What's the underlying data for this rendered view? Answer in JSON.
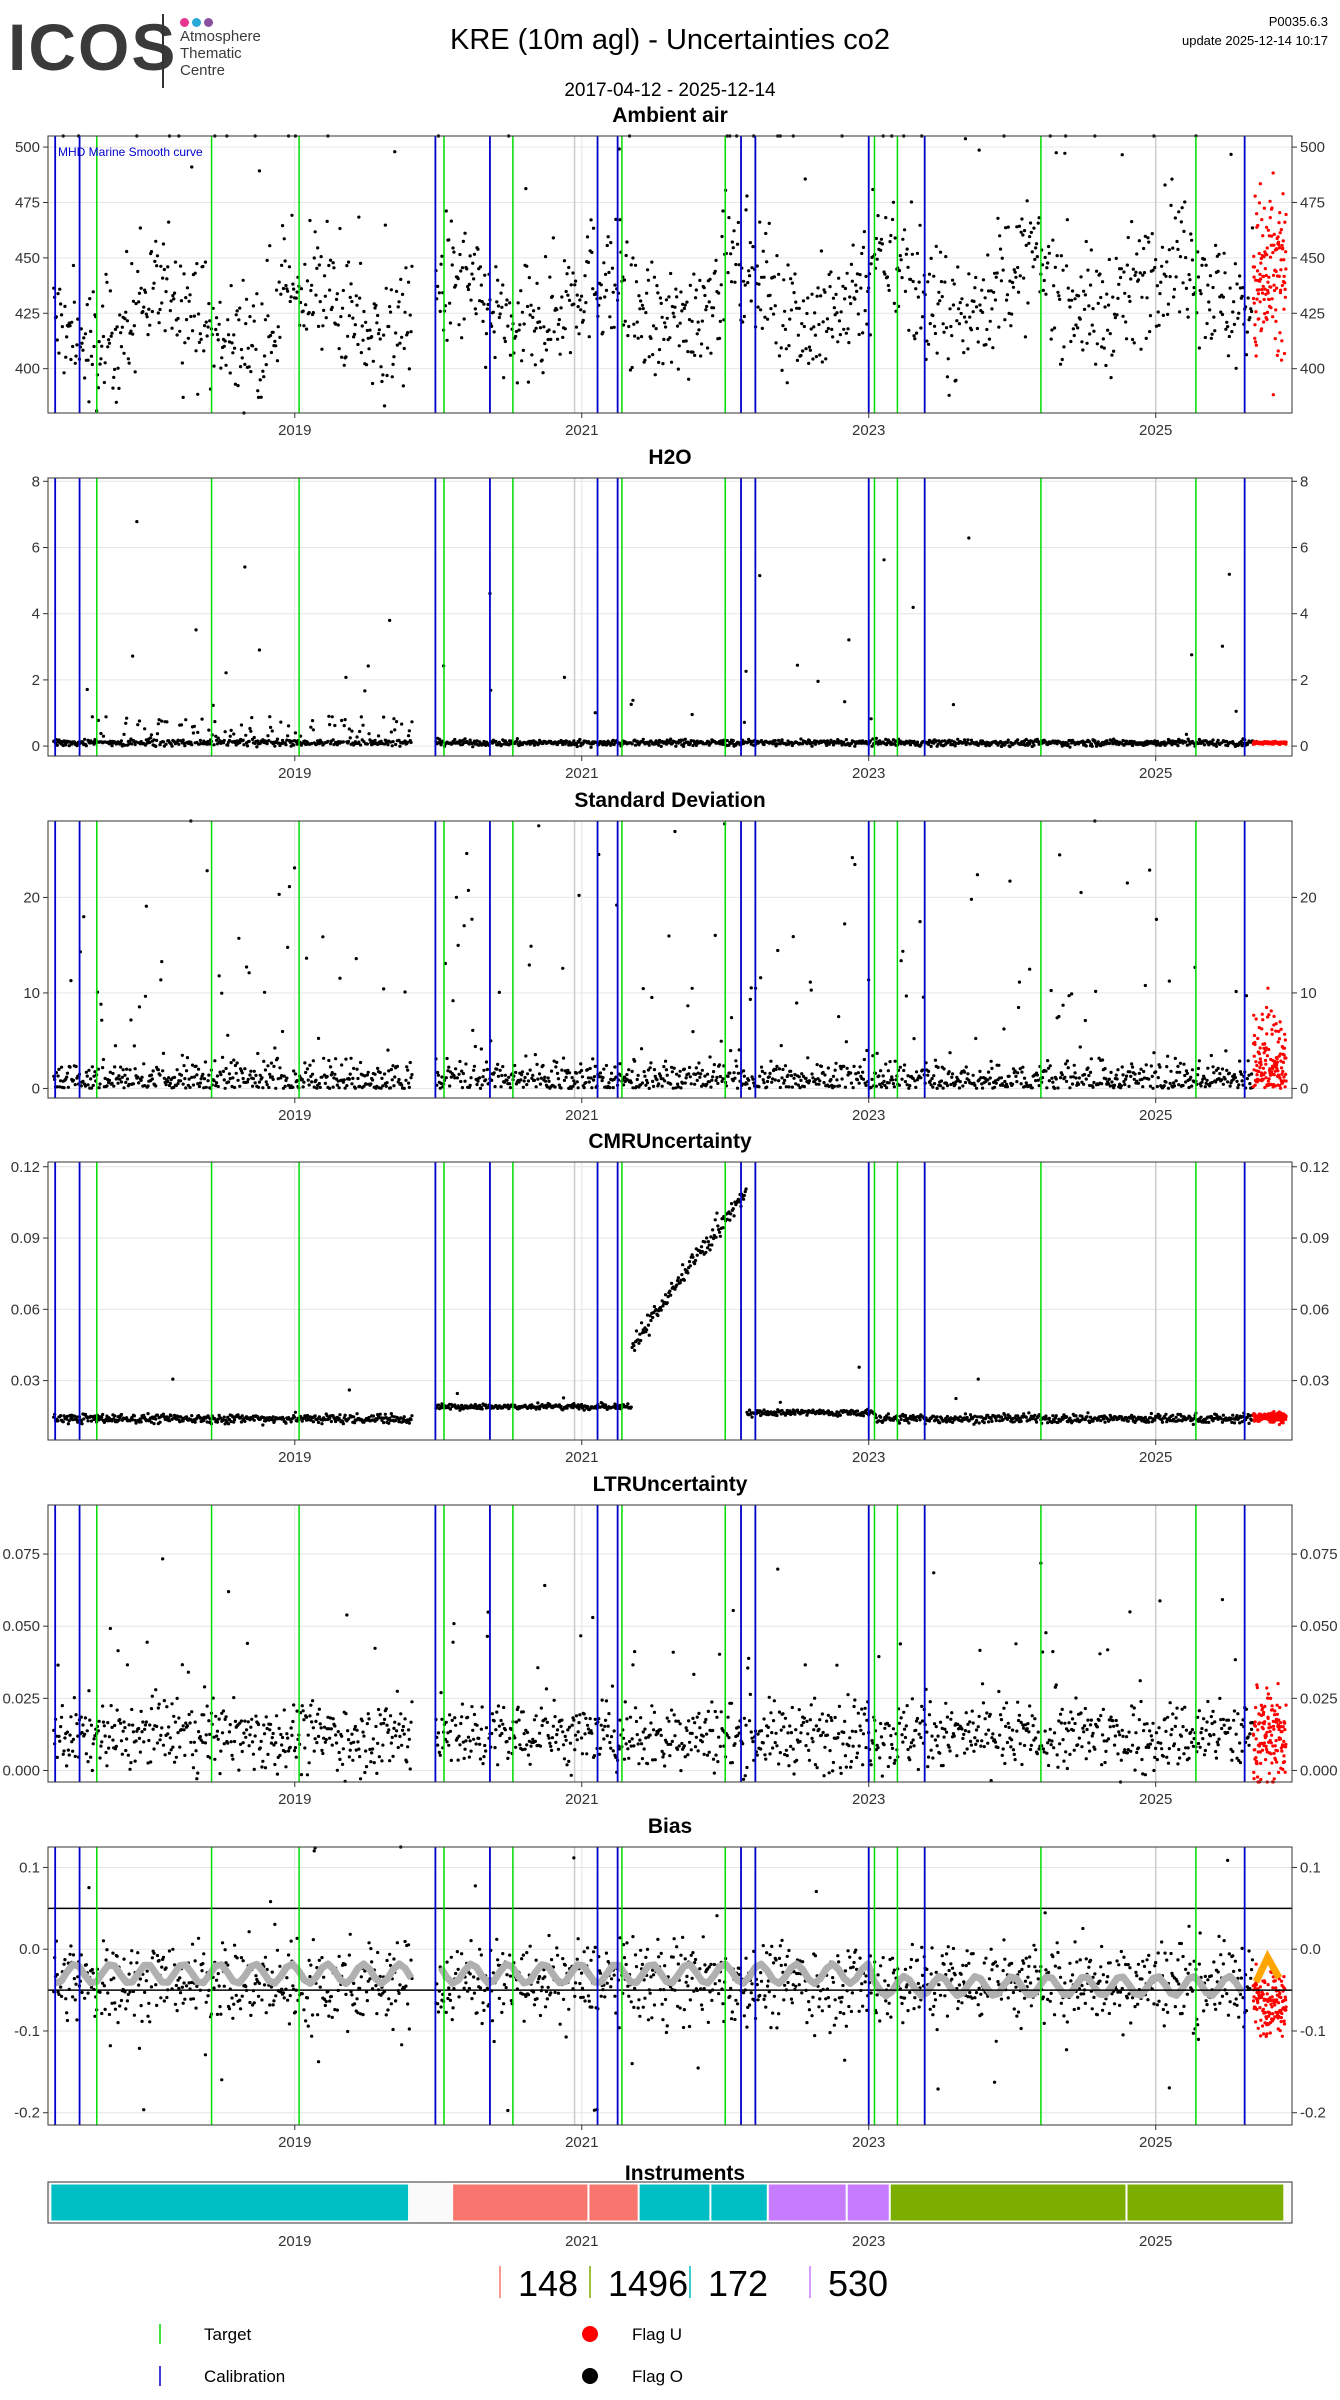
{
  "header": {
    "logo_word": "ICOS",
    "logo_text": [
      "Atmosphere",
      "Thematic",
      "Centre"
    ],
    "logo_dots": [
      "#e8368f",
      "#29a9d5",
      "#8b4fa0"
    ],
    "title": "KRE  (10m agl) - Uncertainties co2",
    "date_range": "2017-04-12 - 2025-12-14",
    "version": "P0035.6.3",
    "update": "update  2025-12-14 10:17"
  },
  "colors": {
    "flag_o": "#000000",
    "flag_u": "#ff0000",
    "target": "#00dd00",
    "calibration": "#0000cc",
    "smooth": "#b0b0b0",
    "smooth_u": "#ffa500",
    "grid": "#e6e6e6",
    "grey_line": "#cccccc"
  },
  "chart_data": {
    "type": "scatter",
    "x_range": [
      2017.28,
      2025.95
    ],
    "x_ticks": [
      "2019",
      "2021",
      "2023",
      "2025"
    ],
    "x_tick_values": [
      2019,
      2021,
      2023,
      2025
    ],
    "calibration_lines": [
      2017.33,
      2017.5,
      2019.98,
      2020.36,
      2021.11,
      2021.25,
      2022.11,
      2022.21,
      2023.0,
      2023.39,
      2025.62
    ],
    "target_lines": [
      2017.62,
      2018.42,
      2019.03,
      2020.04,
      2020.52,
      2021.28,
      2022.0,
      2023.04,
      2023.2,
      2024.2,
      2025.28
    ],
    "grey_lines": [
      2020.95,
      2025.0
    ],
    "panels": [
      {
        "title": "Ambient air",
        "ylim": [
          380,
          505
        ],
        "yticks": [
          400,
          425,
          450,
          475,
          500
        ],
        "annotation": "MHD Marine Smooth curve",
        "base": 420,
        "season": 12,
        "spread": 14,
        "spike": 80,
        "spike_rate": 0.05,
        "u_base": 440,
        "u_spread": 20
      },
      {
        "title": "H2O",
        "ylim": [
          -0.3,
          8.1
        ],
        "yticks": [
          0,
          2,
          4,
          6,
          8
        ],
        "base": 0.1,
        "season": 0,
        "spread": 0.05,
        "spike": 2.5,
        "spike_rate": 0.02,
        "u_base": 0.1,
        "u_spread": 0.02
      },
      {
        "title": "Standard Deviation",
        "ylim": [
          -1,
          28
        ],
        "yticks": [
          0,
          10,
          20
        ],
        "base": 0.8,
        "season": 0,
        "spread": 1.2,
        "spike": 14,
        "spike_rate": 0.1,
        "u_base": 2,
        "u_spread": 3
      },
      {
        "title": "CMRUncertainty",
        "ylim": [
          0.005,
          0.122
        ],
        "yticks": [
          0.03,
          0.06,
          0.09,
          0.12
        ],
        "base": 0.014,
        "season": 0,
        "spread": 0.001,
        "spike": 0.01,
        "spike_rate": 0.01,
        "u_base": 0.0145,
        "u_spread": 0.001
      },
      {
        "title": "LTRUncertainty",
        "ylim": [
          -0.004,
          0.092
        ],
        "yticks": [
          0.0,
          0.025,
          0.05,
          0.075
        ],
        "base": 0.012,
        "season": 0,
        "spread": 0.006,
        "spike": 0.03,
        "spike_rate": 0.06,
        "u_base": 0.012,
        "u_spread": 0.008
      },
      {
        "title": "Bias",
        "ylim": [
          -0.215,
          0.125
        ],
        "yticks": [
          -0.2,
          -0.1,
          0.0,
          0.1
        ],
        "base": -0.04,
        "season": 0,
        "spread": 0.025,
        "spike": 0.08,
        "spike_rate": 0.05,
        "u_base": -0.06,
        "u_spread": 0.02,
        "hlines": [
          0.05,
          -0.05
        ]
      }
    ],
    "panel_titles": [
      "Ambient air",
      "H2O",
      "Standard Deviation",
      "CMRUncertainty",
      "LTRUncertainty",
      "Bias"
    ],
    "instruments": {
      "title": "Instruments",
      "segments": [
        {
          "start": 2017.3,
          "end": 2019.8,
          "color": "#00bfc4"
        },
        {
          "start": 2020.1,
          "end": 2021.05,
          "color": "#f8766d"
        },
        {
          "start": 2021.05,
          "end": 2021.4,
          "color": "#f8766d"
        },
        {
          "start": 2021.4,
          "end": 2021.9,
          "color": "#00bfc4"
        },
        {
          "start": 2021.9,
          "end": 2022.3,
          "color": "#00bfc4"
        },
        {
          "start": 2022.3,
          "end": 2022.85,
          "color": "#c77cff"
        },
        {
          "start": 2022.85,
          "end": 2023.15,
          "color": "#c77cff"
        },
        {
          "start": 2023.15,
          "end": 2024.8,
          "color": "#7cae00"
        },
        {
          "start": 2024.8,
          "end": 2025.9,
          "color": "#7cae00"
        }
      ],
      "ids": [
        "148",
        "1496",
        "172",
        "530"
      ],
      "id_colors": [
        "#f8766d",
        "#7cae00",
        "#00bfc4",
        "#c77cff"
      ]
    }
  },
  "legend": {
    "target": "Target",
    "calibration": "Calibration",
    "flag_u": "Flag U",
    "flag_o": "Flag O"
  }
}
